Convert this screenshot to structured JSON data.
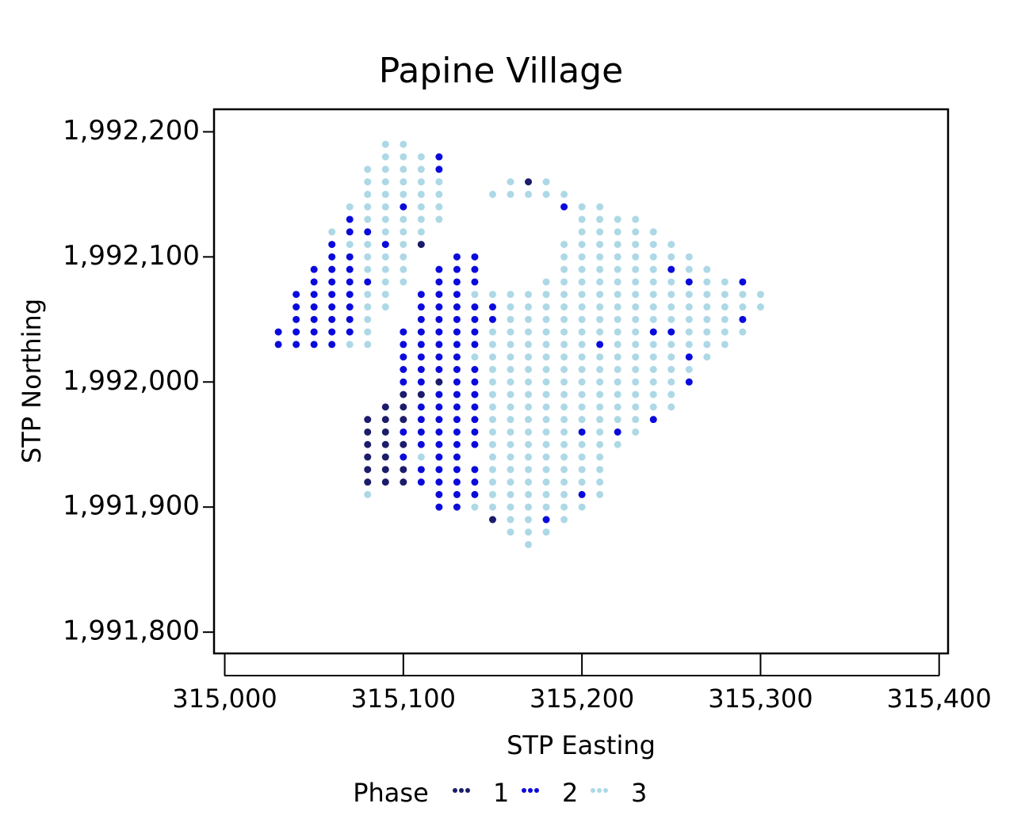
{
  "chart_data": {
    "type": "scatter",
    "title": "Papine Village",
    "x_label": "STP Easting",
    "y_label": "STP Northing",
    "legend_title": "Phase",
    "legend_position": "bottom",
    "xlim": [
      314994,
      315405
    ],
    "ylim": [
      1991783,
      1992218
    ],
    "xticks": [
      {
        "value": 315000,
        "label": "315,000"
      },
      {
        "value": 315100,
        "label": "315,100"
      },
      {
        "value": 315200,
        "label": "315,200"
      },
      {
        "value": 315300,
        "label": "315,300"
      },
      {
        "value": 315400,
        "label": "315,400"
      }
    ],
    "yticks": [
      {
        "value": 1991800,
        "label": "1,991,800"
      },
      {
        "value": 1991900,
        "label": "1,991,900"
      },
      {
        "value": 1992000,
        "label": "1,992,000"
      },
      {
        "value": 1992100,
        "label": "1,992,100"
      },
      {
        "value": 1992200,
        "label": "1,992,200"
      }
    ],
    "series": [
      {
        "name": "1",
        "color": "#1c1c6b",
        "x": [
          315100,
          315110,
          315090,
          315100,
          315080,
          315090,
          315100,
          315080,
          315090,
          315080,
          315090,
          315100,
          315080,
          315090,
          315080,
          315090,
          315100,
          315080,
          315090,
          315100,
          315110,
          315170,
          315150,
          315120
        ],
        "y": [
          1991990,
          1991990,
          1991980,
          1991980,
          1991970,
          1991970,
          1991970,
          1991960,
          1991960,
          1991950,
          1991950,
          1991950,
          1991940,
          1991940,
          1991930,
          1991930,
          1991930,
          1991920,
          1991920,
          1991920,
          1992110,
          1992160,
          1991890,
          1992000
        ]
      },
      {
        "name": "2",
        "color": "#0a0adc",
        "x": [
          315030,
          315040,
          315050,
          315060,
          315100,
          315110,
          315120,
          315130,
          315140,
          315210,
          315030,
          315040,
          315050,
          315060,
          315070,
          315100,
          315110,
          315120,
          315130,
          315140,
          315240,
          315250,
          315040,
          315050,
          315060,
          315070,
          315110,
          315120,
          315130,
          315140,
          315150,
          315290,
          315040,
          315050,
          315060,
          315070,
          315110,
          315120,
          315130,
          315140,
          315150,
          315040,
          315050,
          315060,
          315070,
          315110,
          315120,
          315130,
          315050,
          315060,
          315070,
          315080,
          315120,
          315130,
          315140,
          315260,
          315290,
          315050,
          315060,
          315070,
          315120,
          315130,
          315140,
          315250,
          315060,
          315070,
          315130,
          315140,
          315060,
          315090,
          315070,
          315080,
          315070,
          315100,
          315190,
          315120,
          315120,
          315100,
          315110,
          315120,
          315130,
          315260,
          315100,
          315110,
          315120,
          315130,
          315140,
          315100,
          315110,
          315130,
          315140,
          315260,
          315120,
          315130,
          315140,
          315110,
          315120,
          315130,
          315140,
          315110,
          315120,
          315130,
          315140,
          315240,
          315100,
          315110,
          315120,
          315130,
          315140,
          315200,
          315220,
          315110,
          315120,
          315130,
          315140,
          315100,
          315120,
          315130,
          315110,
          315120,
          315130,
          315140,
          315110,
          315120,
          315130,
          315140,
          315120,
          315130,
          315140,
          315200,
          315120,
          315130,
          315180
        ],
        "y": [
          1992030,
          1992030,
          1992030,
          1992030,
          1992030,
          1992030,
          1992030,
          1992030,
          1992030,
          1992030,
          1992040,
          1992040,
          1992040,
          1992040,
          1992040,
          1992040,
          1992040,
          1992040,
          1992040,
          1992040,
          1992040,
          1992040,
          1992050,
          1992050,
          1992050,
          1992050,
          1992050,
          1992050,
          1992050,
          1992050,
          1992050,
          1992050,
          1992060,
          1992060,
          1992060,
          1992060,
          1992060,
          1992060,
          1992060,
          1992060,
          1992060,
          1992070,
          1992070,
          1992070,
          1992070,
          1992070,
          1992070,
          1992070,
          1992080,
          1992080,
          1992080,
          1992080,
          1992080,
          1992080,
          1992080,
          1992080,
          1992080,
          1992090,
          1992090,
          1992090,
          1992090,
          1992090,
          1992090,
          1992090,
          1992100,
          1992100,
          1992100,
          1992100,
          1992110,
          1992110,
          1992120,
          1992120,
          1992130,
          1992140,
          1992140,
          1992170,
          1992180,
          1992020,
          1992020,
          1992020,
          1992020,
          1992020,
          1992010,
          1992010,
          1992010,
          1992010,
          1992010,
          1992000,
          1992000,
          1992000,
          1992000,
          1992000,
          1991990,
          1991990,
          1991990,
          1991980,
          1991980,
          1991980,
          1991980,
          1991970,
          1991970,
          1991970,
          1991970,
          1991970,
          1991960,
          1991960,
          1991960,
          1991960,
          1991960,
          1991960,
          1991960,
          1991950,
          1991950,
          1991950,
          1991950,
          1991940,
          1991940,
          1991940,
          1991930,
          1991930,
          1991930,
          1991930,
          1991920,
          1991920,
          1991920,
          1991920,
          1991910,
          1991910,
          1991910,
          1991910,
          1991900,
          1991900,
          1991890
        ]
      },
      {
        "name": "3",
        "color": "#add8e6",
        "x": [
          315090,
          315100,
          315090,
          315100,
          315110,
          315080,
          315090,
          315100,
          315110,
          315080,
          315090,
          315100,
          315110,
          315120,
          315160,
          315180,
          315080,
          315090,
          315100,
          315110,
          315120,
          315150,
          315160,
          315170,
          315180,
          315190,
          315070,
          315080,
          315090,
          315110,
          315120,
          315200,
          315210,
          315080,
          315090,
          315100,
          315110,
          315120,
          315200,
          315210,
          315220,
          315230,
          315060,
          315090,
          315100,
          315110,
          315200,
          315210,
          315220,
          315230,
          315240,
          315070,
          315080,
          315100,
          315190,
          315200,
          315210,
          315220,
          315230,
          315240,
          315250,
          315080,
          315090,
          315100,
          315190,
          315200,
          315210,
          315220,
          315230,
          315240,
          315250,
          315260,
          315080,
          315090,
          315100,
          315190,
          315200,
          315210,
          315220,
          315230,
          315240,
          315260,
          315270,
          315090,
          315100,
          315180,
          315190,
          315200,
          315210,
          315220,
          315230,
          315240,
          315250,
          315270,
          315280,
          315080,
          315090,
          315140,
          315150,
          315160,
          315170,
          315180,
          315190,
          315200,
          315210,
          315220,
          315230,
          315240,
          315250,
          315260,
          315270,
          315280,
          315290,
          315300,
          315080,
          315090,
          315160,
          315170,
          315180,
          315190,
          315200,
          315210,
          315220,
          315230,
          315240,
          315250,
          315260,
          315270,
          315280,
          315290,
          315300,
          315080,
          315160,
          315170,
          315180,
          315190,
          315200,
          315210,
          315220,
          315230,
          315240,
          315250,
          315260,
          315270,
          315280,
          315080,
          315150,
          315160,
          315170,
          315180,
          315190,
          315200,
          315210,
          315220,
          315230,
          315260,
          315270,
          315280,
          315290,
          315070,
          315080,
          315150,
          315160,
          315170,
          315180,
          315190,
          315200,
          315220,
          315230,
          315240,
          315250,
          315260,
          315270,
          315280,
          315140,
          315150,
          315160,
          315170,
          315180,
          315190,
          315200,
          315210,
          315220,
          315230,
          315240,
          315250,
          315270,
          315150,
          315160,
          315170,
          315180,
          315190,
          315200,
          315210,
          315220,
          315230,
          315240,
          315250,
          315260,
          315150,
          315160,
          315170,
          315180,
          315190,
          315200,
          315210,
          315220,
          315230,
          315240,
          315250,
          315150,
          315160,
          315170,
          315180,
          315190,
          315200,
          315210,
          315220,
          315230,
          315240,
          315250,
          315150,
          315160,
          315170,
          315180,
          315190,
          315200,
          315210,
          315220,
          315230,
          315240,
          315250,
          315150,
          315160,
          315170,
          315180,
          315190,
          315200,
          315210,
          315220,
          315230,
          315150,
          315160,
          315170,
          315180,
          315190,
          315210,
          315230,
          315150,
          315160,
          315170,
          315180,
          315190,
          315200,
          315210,
          315220,
          315110,
          315150,
          315160,
          315170,
          315180,
          315190,
          315200,
          315210,
          315150,
          315160,
          315170,
          315180,
          315190,
          315200,
          315210,
          315150,
          315160,
          315170,
          315180,
          315190,
          315200,
          315210,
          315080,
          315150,
          315160,
          315170,
          315180,
          315190,
          315210,
          315140,
          315150,
          315160,
          315170,
          315180,
          315190,
          315200,
          315160,
          315170,
          315190,
          315160,
          315170,
          315180,
          315170
        ],
        "y": [
          1992190,
          1992190,
          1992180,
          1992180,
          1992180,
          1992170,
          1992170,
          1992170,
          1992170,
          1992160,
          1992160,
          1992160,
          1992160,
          1992160,
          1992160,
          1992160,
          1992150,
          1992150,
          1992150,
          1992150,
          1992150,
          1992150,
          1992150,
          1992150,
          1992150,
          1992150,
          1992140,
          1992140,
          1992140,
          1992140,
          1992140,
          1992140,
          1992140,
          1992130,
          1992130,
          1992130,
          1992130,
          1992130,
          1992130,
          1992130,
          1992130,
          1992130,
          1992120,
          1992120,
          1992120,
          1992120,
          1992120,
          1992120,
          1992120,
          1992120,
          1992120,
          1992110,
          1992110,
          1992110,
          1992110,
          1992110,
          1992110,
          1992110,
          1992110,
          1992110,
          1992110,
          1992100,
          1992100,
          1992100,
          1992100,
          1992100,
          1992100,
          1992100,
          1992100,
          1992100,
          1992100,
          1992100,
          1992090,
          1992090,
          1992090,
          1992090,
          1992090,
          1992090,
          1992090,
          1992090,
          1992090,
          1992090,
          1992090,
          1992080,
          1992080,
          1992080,
          1992080,
          1992080,
          1992080,
          1992080,
          1992080,
          1992080,
          1992080,
          1992080,
          1992080,
          1992070,
          1992070,
          1992070,
          1992070,
          1992070,
          1992070,
          1992070,
          1992070,
          1992070,
          1992070,
          1992070,
          1992070,
          1992070,
          1992070,
          1992070,
          1992070,
          1992070,
          1992070,
          1992070,
          1992060,
          1992060,
          1992060,
          1992060,
          1992060,
          1992060,
          1992060,
          1992060,
          1992060,
          1992060,
          1992060,
          1992060,
          1992060,
          1992060,
          1992060,
          1992060,
          1992060,
          1992050,
          1992050,
          1992050,
          1992050,
          1992050,
          1992050,
          1992050,
          1992050,
          1992050,
          1992050,
          1992050,
          1992050,
          1992050,
          1992050,
          1992040,
          1992040,
          1992040,
          1992040,
          1992040,
          1992040,
          1992040,
          1992040,
          1992040,
          1992040,
          1992040,
          1992040,
          1992040,
          1992040,
          1992030,
          1992030,
          1992030,
          1992030,
          1992030,
          1992030,
          1992030,
          1992030,
          1992030,
          1992030,
          1992030,
          1992030,
          1992030,
          1992030,
          1992030,
          1992020,
          1992020,
          1992020,
          1992020,
          1992020,
          1992020,
          1992020,
          1992020,
          1992020,
          1992020,
          1992020,
          1992020,
          1992020,
          1992010,
          1992010,
          1992010,
          1992010,
          1992010,
          1992010,
          1992010,
          1992010,
          1992010,
          1992010,
          1992010,
          1992010,
          1992000,
          1992000,
          1992000,
          1992000,
          1992000,
          1992000,
          1992000,
          1992000,
          1992000,
          1992000,
          1992000,
          1991990,
          1991990,
          1991990,
          1991990,
          1991990,
          1991990,
          1991990,
          1991990,
          1991990,
          1991990,
          1991990,
          1991980,
          1991980,
          1991980,
          1991980,
          1991980,
          1991980,
          1991980,
          1991980,
          1991980,
          1991980,
          1991980,
          1991970,
          1991970,
          1991970,
          1991970,
          1991970,
          1991970,
          1991970,
          1991970,
          1991970,
          1991960,
          1991960,
          1991960,
          1991960,
          1991960,
          1991960,
          1991960,
          1991950,
          1991950,
          1991950,
          1991950,
          1991950,
          1991950,
          1991950,
          1991950,
          1991940,
          1991940,
          1991940,
          1991940,
          1991940,
          1991940,
          1991940,
          1991940,
          1991930,
          1991930,
          1991930,
          1991930,
          1991930,
          1991930,
          1991930,
          1991920,
          1991920,
          1991920,
          1991920,
          1991920,
          1991920,
          1991920,
          1991910,
          1991910,
          1991910,
          1991910,
          1991910,
          1991910,
          1991910,
          1991900,
          1991900,
          1991900,
          1991900,
          1991900,
          1991900,
          1991900,
          1991890,
          1991890,
          1991890,
          1991880,
          1991880,
          1991880,
          1991870
        ]
      }
    ]
  }
}
